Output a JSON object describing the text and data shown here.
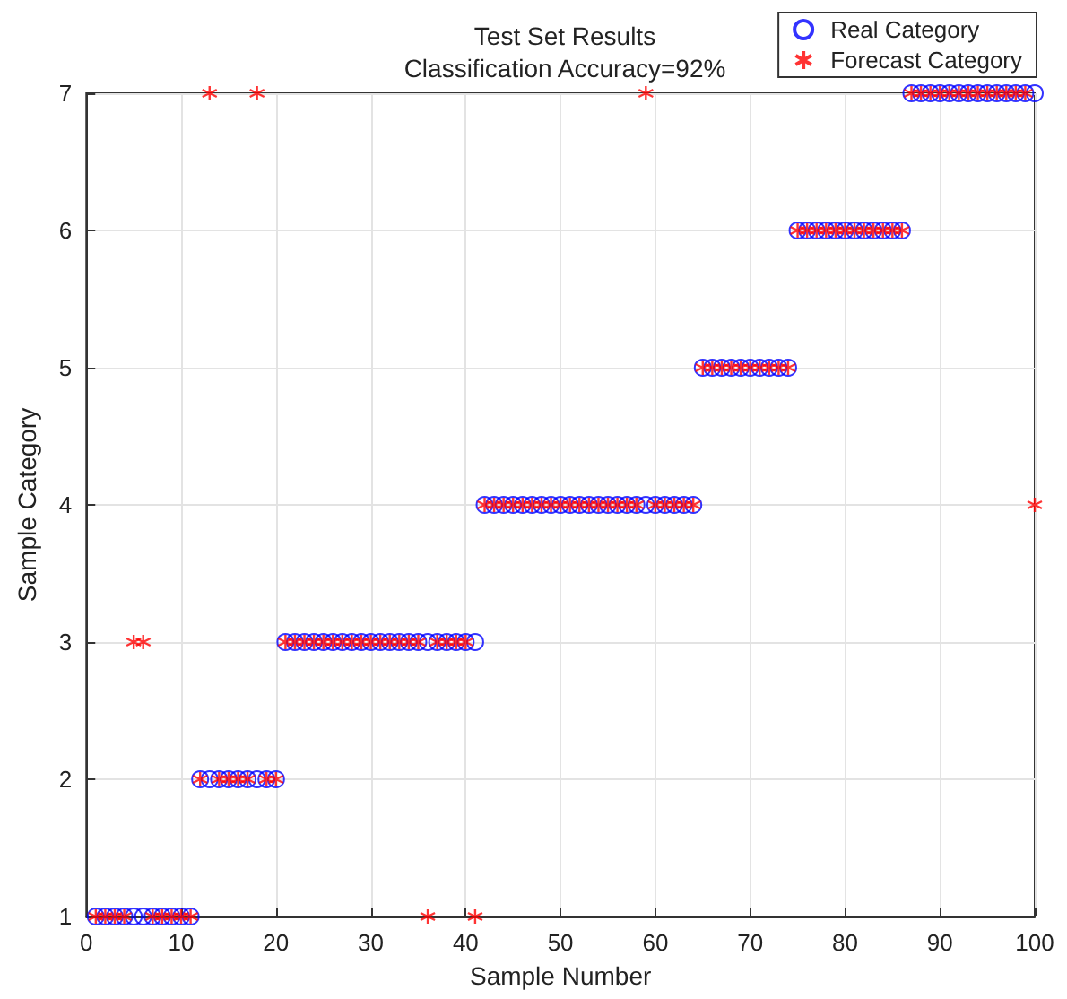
{
  "chart_data": {
    "type": "scatter",
    "title": "Test Set Results",
    "subtitle": "Classification Accuracy=92%",
    "xlabel": "Sample Number",
    "ylabel": "Sample Category",
    "x": [
      1,
      2,
      3,
      4,
      5,
      6,
      7,
      8,
      9,
      10,
      11,
      12,
      13,
      14,
      15,
      16,
      17,
      18,
      19,
      20,
      21,
      22,
      23,
      24,
      25,
      26,
      27,
      28,
      29,
      30,
      31,
      32,
      33,
      34,
      35,
      36,
      37,
      38,
      39,
      40,
      41,
      42,
      43,
      44,
      45,
      46,
      47,
      48,
      49,
      50,
      51,
      52,
      53,
      54,
      55,
      56,
      57,
      58,
      59,
      60,
      61,
      62,
      63,
      64,
      65,
      66,
      67,
      68,
      69,
      70,
      71,
      72,
      73,
      74,
      75,
      76,
      77,
      78,
      79,
      80,
      81,
      82,
      83,
      84,
      85,
      86,
      87,
      88,
      89,
      90,
      91,
      92,
      93,
      94,
      95,
      96,
      97,
      98,
      99,
      100
    ],
    "series": [
      {
        "name": "Real Category",
        "color": "#0000ff",
        "marker": "circle",
        "values": [
          1,
          1,
          1,
          1,
          1,
          1,
          1,
          1,
          1,
          1,
          1,
          2,
          2,
          2,
          2,
          2,
          2,
          2,
          2,
          2,
          3,
          3,
          3,
          3,
          3,
          3,
          3,
          3,
          3,
          3,
          3,
          3,
          3,
          3,
          3,
          3,
          3,
          3,
          3,
          3,
          3,
          4,
          4,
          4,
          4,
          4,
          4,
          4,
          4,
          4,
          4,
          4,
          4,
          4,
          4,
          4,
          4,
          4,
          4,
          4,
          4,
          4,
          4,
          4,
          5,
          5,
          5,
          5,
          5,
          5,
          5,
          5,
          5,
          5,
          6,
          6,
          6,
          6,
          6,
          6,
          6,
          6,
          6,
          6,
          6,
          6,
          7,
          7,
          7,
          7,
          7,
          7,
          7,
          7,
          7,
          7,
          7,
          7,
          7,
          7
        ]
      },
      {
        "name": "Forecast Category",
        "color": "#ff0000",
        "marker": "cross",
        "values": [
          1,
          1,
          1,
          1,
          3,
          3,
          1,
          1,
          1,
          1,
          1,
          2,
          7,
          2,
          2,
          2,
          2,
          7,
          2,
          2,
          3,
          3,
          3,
          3,
          3,
          3,
          3,
          3,
          3,
          3,
          3,
          3,
          3,
          3,
          3,
          1,
          3,
          3,
          3,
          3,
          1,
          4,
          4,
          4,
          4,
          4,
          4,
          4,
          4,
          4,
          4,
          4,
          4,
          4,
          4,
          4,
          4,
          4,
          7,
          4,
          4,
          4,
          4,
          4,
          5,
          5,
          5,
          5,
          5,
          5,
          5,
          5,
          5,
          5,
          6,
          6,
          6,
          6,
          6,
          6,
          6,
          6,
          6,
          6,
          6,
          6,
          7,
          7,
          7,
          7,
          7,
          7,
          7,
          7,
          7,
          7,
          7,
          7,
          7,
          4
        ]
      }
    ],
    "xlim": [
      0,
      100
    ],
    "xticks": [
      0,
      10,
      20,
      30,
      40,
      50,
      60,
      70,
      80,
      90,
      100
    ],
    "ylim": [
      1,
      7
    ],
    "yticks": [
      1,
      2,
      3,
      4,
      5,
      6,
      7
    ],
    "grid": true,
    "legend": "top right"
  }
}
